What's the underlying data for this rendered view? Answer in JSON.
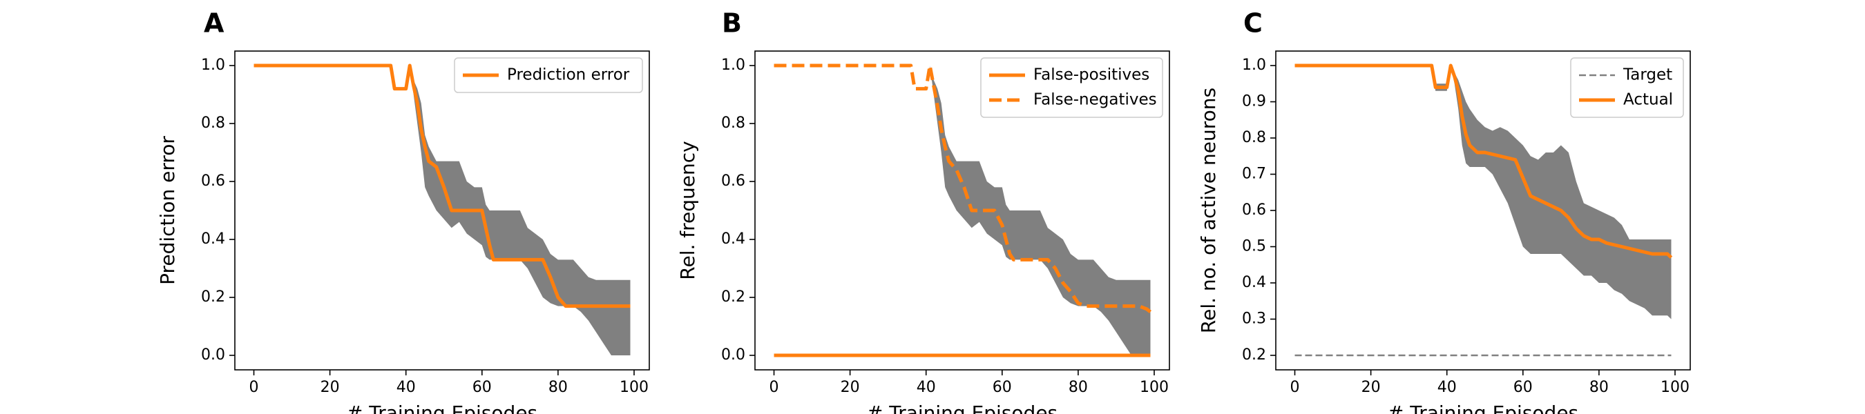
{
  "chart_data": [
    {
      "panel": "A",
      "type": "line",
      "xlabel": "# Training Episodes",
      "ylabel": "Prediction error",
      "xlim": [
        -5,
        104
      ],
      "ylim": [
        -0.05,
        1.05
      ],
      "xticks": [
        0,
        20,
        40,
        60,
        80,
        100
      ],
      "yticks": [
        0.0,
        0.2,
        0.4,
        0.6,
        0.8,
        1.0
      ],
      "ytick_labels": [
        "0.0",
        "0.2",
        "0.4",
        "0.6",
        "0.8",
        "1.0"
      ],
      "legend_position": "top-right",
      "series": [
        {
          "name": "Prediction error",
          "color": "#ff7f0e",
          "style": "solid",
          "x": [
            0,
            36,
            37,
            40,
            41,
            42,
            43,
            44,
            45,
            46,
            48,
            50,
            52,
            54,
            56,
            58,
            60,
            61,
            62,
            63,
            64,
            66,
            68,
            70,
            72,
            74,
            76,
            78,
            80,
            82,
            84,
            86,
            88,
            90,
            92,
            94,
            96,
            98,
            99
          ],
          "y": [
            1.0,
            1.0,
            0.92,
            0.92,
            1.0,
            0.93,
            0.87,
            0.78,
            0.72,
            0.67,
            0.65,
            0.58,
            0.5,
            0.5,
            0.5,
            0.5,
            0.5,
            0.44,
            0.38,
            0.33,
            0.33,
            0.33,
            0.33,
            0.33,
            0.33,
            0.33,
            0.33,
            0.27,
            0.2,
            0.17,
            0.17,
            0.17,
            0.17,
            0.17,
            0.17,
            0.17,
            0.17,
            0.17,
            0.17
          ]
        }
      ],
      "band": {
        "color": "#808080",
        "x": [
          0,
          36,
          37,
          40,
          41,
          42,
          43,
          44,
          45,
          46,
          48,
          50,
          52,
          54,
          56,
          58,
          60,
          61,
          62,
          63,
          64,
          66,
          68,
          70,
          72,
          74,
          76,
          78,
          80,
          82,
          84,
          86,
          88,
          90,
          92,
          94,
          96,
          98,
          99
        ],
        "upper": [
          1.0,
          1.0,
          0.92,
          0.92,
          1.0,
          0.95,
          0.92,
          0.87,
          0.76,
          0.72,
          0.67,
          0.67,
          0.67,
          0.67,
          0.6,
          0.58,
          0.58,
          0.52,
          0.5,
          0.5,
          0.5,
          0.5,
          0.5,
          0.5,
          0.44,
          0.42,
          0.4,
          0.35,
          0.33,
          0.33,
          0.33,
          0.3,
          0.27,
          0.26,
          0.26,
          0.26,
          0.26,
          0.26,
          0.26
        ],
        "lower": [
          1.0,
          1.0,
          0.92,
          0.92,
          1.0,
          0.9,
          0.8,
          0.7,
          0.58,
          0.55,
          0.5,
          0.47,
          0.44,
          0.46,
          0.42,
          0.4,
          0.38,
          0.34,
          0.33,
          0.33,
          0.33,
          0.33,
          0.33,
          0.33,
          0.3,
          0.25,
          0.2,
          0.18,
          0.17,
          0.17,
          0.17,
          0.15,
          0.12,
          0.08,
          0.04,
          0.0,
          0.0,
          0.0,
          0.0
        ]
      }
    },
    {
      "panel": "B",
      "type": "line",
      "xlabel": "# Training Episodes",
      "ylabel": "Rel. frequency",
      "xlim": [
        -5,
        104
      ],
      "ylim": [
        -0.05,
        1.05
      ],
      "xticks": [
        0,
        20,
        40,
        60,
        80,
        100
      ],
      "yticks": [
        0.0,
        0.2,
        0.4,
        0.6,
        0.8,
        1.0
      ],
      "ytick_labels": [
        "0.0",
        "0.2",
        "0.4",
        "0.6",
        "0.8",
        "1.0"
      ],
      "legend_position": "top-right",
      "series": [
        {
          "name": "False-positives",
          "color": "#ff7f0e",
          "style": "solid",
          "x": [
            0,
            99
          ],
          "y": [
            0.0,
            0.0
          ]
        },
        {
          "name": "False-negatives",
          "color": "#ff7f0e",
          "style": "dashed",
          "x": [
            0,
            36,
            37,
            40,
            41,
            42,
            43,
            44,
            45,
            46,
            48,
            50,
            52,
            54,
            56,
            58,
            60,
            61,
            62,
            63,
            64,
            66,
            68,
            70,
            72,
            74,
            76,
            78,
            80,
            82,
            84,
            86,
            88,
            90,
            92,
            94,
            96,
            98,
            99
          ],
          "y": [
            1.0,
            1.0,
            0.92,
            0.92,
            1.0,
            0.93,
            0.86,
            0.78,
            0.72,
            0.67,
            0.64,
            0.58,
            0.5,
            0.5,
            0.5,
            0.5,
            0.45,
            0.4,
            0.35,
            0.33,
            0.33,
            0.33,
            0.33,
            0.33,
            0.33,
            0.3,
            0.25,
            0.22,
            0.18,
            0.17,
            0.17,
            0.17,
            0.17,
            0.17,
            0.17,
            0.17,
            0.17,
            0.16,
            0.15
          ]
        }
      ],
      "band": {
        "color": "#808080",
        "x": [
          0,
          36,
          37,
          40,
          41,
          42,
          43,
          44,
          45,
          46,
          48,
          50,
          52,
          54,
          56,
          58,
          60,
          61,
          62,
          63,
          64,
          66,
          68,
          70,
          72,
          74,
          76,
          78,
          80,
          82,
          84,
          86,
          88,
          90,
          92,
          94,
          96,
          98,
          99
        ],
        "upper": [
          1.0,
          1.0,
          0.92,
          0.92,
          1.0,
          0.95,
          0.92,
          0.87,
          0.76,
          0.72,
          0.67,
          0.67,
          0.67,
          0.67,
          0.6,
          0.58,
          0.58,
          0.52,
          0.5,
          0.5,
          0.5,
          0.5,
          0.5,
          0.5,
          0.44,
          0.42,
          0.4,
          0.35,
          0.33,
          0.33,
          0.33,
          0.3,
          0.27,
          0.26,
          0.26,
          0.26,
          0.26,
          0.26,
          0.26
        ],
        "lower": [
          1.0,
          1.0,
          0.92,
          0.92,
          1.0,
          0.9,
          0.8,
          0.7,
          0.58,
          0.55,
          0.5,
          0.47,
          0.44,
          0.46,
          0.42,
          0.4,
          0.38,
          0.34,
          0.33,
          0.33,
          0.33,
          0.33,
          0.33,
          0.33,
          0.3,
          0.25,
          0.2,
          0.18,
          0.17,
          0.17,
          0.17,
          0.15,
          0.12,
          0.08,
          0.04,
          0.0,
          0.0,
          0.0,
          0.0
        ]
      }
    },
    {
      "panel": "C",
      "type": "line",
      "xlabel": "# Training Episodes",
      "ylabel": "Rel. no. of active neurons",
      "xlim": [
        -5,
        104
      ],
      "ylim": [
        0.16,
        1.04
      ],
      "xticks": [
        0,
        20,
        40,
        60,
        80,
        100
      ],
      "yticks": [
        0.2,
        0.3,
        0.4,
        0.5,
        0.6,
        0.7,
        0.8,
        0.9,
        1.0
      ],
      "ytick_labels": [
        "0.2",
        "0.3",
        "0.4",
        "0.5",
        "0.6",
        "0.7",
        "0.8",
        "0.9",
        "1.0"
      ],
      "legend_position": "top-right",
      "series": [
        {
          "name": "Target",
          "color": "#808080",
          "style": "dashed-thin",
          "x": [
            0,
            99
          ],
          "y": [
            0.2,
            0.2
          ]
        },
        {
          "name": "Actual",
          "color": "#ff7f0e",
          "style": "solid",
          "x": [
            0,
            36,
            37,
            40,
            41,
            42,
            43,
            44,
            45,
            46,
            48,
            50,
            52,
            54,
            56,
            58,
            60,
            62,
            64,
            66,
            68,
            70,
            72,
            74,
            76,
            78,
            80,
            82,
            84,
            86,
            88,
            90,
            92,
            94,
            96,
            98,
            99
          ],
          "y": [
            1.0,
            1.0,
            0.94,
            0.94,
            1.0,
            0.97,
            0.93,
            0.86,
            0.81,
            0.78,
            0.76,
            0.76,
            0.755,
            0.75,
            0.745,
            0.74,
            0.69,
            0.64,
            0.63,
            0.62,
            0.61,
            0.6,
            0.58,
            0.55,
            0.53,
            0.52,
            0.52,
            0.51,
            0.505,
            0.5,
            0.495,
            0.49,
            0.485,
            0.48,
            0.48,
            0.48,
            0.47
          ]
        }
      ],
      "band": {
        "color": "#808080",
        "x": [
          0,
          36,
          37,
          40,
          41,
          42,
          43,
          44,
          45,
          46,
          48,
          50,
          52,
          54,
          56,
          58,
          60,
          62,
          64,
          66,
          68,
          70,
          72,
          74,
          76,
          78,
          80,
          82,
          84,
          86,
          88,
          90,
          92,
          94,
          96,
          98,
          99
        ],
        "upper": [
          1.0,
          1.0,
          0.95,
          0.95,
          1.0,
          0.98,
          0.96,
          0.93,
          0.9,
          0.88,
          0.85,
          0.83,
          0.82,
          0.83,
          0.82,
          0.8,
          0.78,
          0.75,
          0.74,
          0.76,
          0.76,
          0.78,
          0.76,
          0.68,
          0.62,
          0.61,
          0.6,
          0.59,
          0.58,
          0.56,
          0.52,
          0.52,
          0.52,
          0.52,
          0.52,
          0.52,
          0.52
        ],
        "lower": [
          1.0,
          1.0,
          0.93,
          0.93,
          1.0,
          0.95,
          0.88,
          0.78,
          0.73,
          0.72,
          0.72,
          0.72,
          0.7,
          0.66,
          0.62,
          0.56,
          0.5,
          0.48,
          0.48,
          0.48,
          0.48,
          0.48,
          0.46,
          0.44,
          0.42,
          0.42,
          0.4,
          0.4,
          0.38,
          0.37,
          0.35,
          0.34,
          0.33,
          0.31,
          0.31,
          0.31,
          0.3
        ]
      }
    }
  ]
}
